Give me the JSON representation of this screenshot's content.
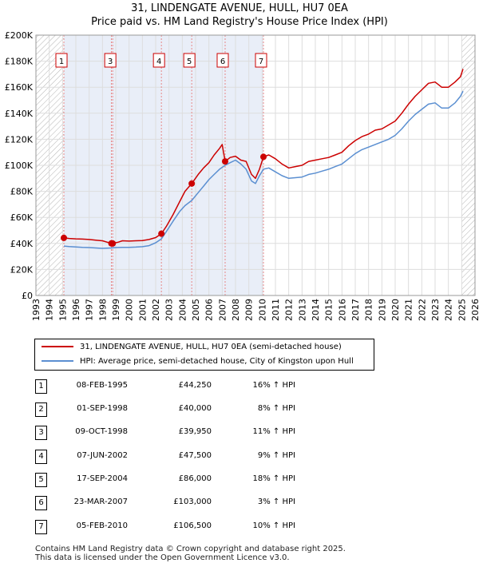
{
  "title": {
    "line1": "31, LINDENGATE AVENUE, HULL, HU7 0EA",
    "line2": "Price paid vs. HM Land Registry's House Price Index (HPI)"
  },
  "colors": {
    "property": "#cc0000",
    "hpi": "#5b8fd1",
    "shade": "#e9eef8",
    "hatch": "#b3b3b3",
    "grid": "#ffffff",
    "vline": "#e88888"
  },
  "chart_data": {
    "type": "line",
    "xlim": [
      1993,
      2026
    ],
    "ylim": [
      0,
      200000
    ],
    "y_ticks": [
      0,
      20000,
      40000,
      60000,
      80000,
      100000,
      120000,
      140000,
      160000,
      180000,
      200000
    ],
    "y_tick_labels": [
      "£0",
      "£20K",
      "£40K",
      "£60K",
      "£80K",
      "£100K",
      "£120K",
      "£140K",
      "£160K",
      "£180K",
      "£200K"
    ],
    "x_ticks": [
      1993,
      1994,
      1995,
      1996,
      1997,
      1998,
      1999,
      2000,
      2001,
      2002,
      2003,
      2004,
      2005,
      2006,
      2007,
      2008,
      2009,
      2010,
      2011,
      2012,
      2013,
      2014,
      2015,
      2016,
      2017,
      2018,
      2019,
      2020,
      2021,
      2022,
      2023,
      2024,
      2025,
      2026
    ],
    "x_tick_labels": [
      "1993",
      "1994",
      "1995",
      "1996",
      "1997",
      "1998",
      "1999",
      "2000",
      "2001",
      "2002",
      "2003",
      "2004",
      "2005",
      "2006",
      "2007",
      "2008",
      "2009",
      "2010",
      "2011",
      "2012",
      "2013",
      "2014",
      "2015",
      "2016",
      "2017",
      "2018",
      "2019",
      "2020",
      "2021",
      "2022",
      "2023",
      "2024",
      "2025",
      "2026"
    ],
    "hatched_before": 1995.1,
    "hatched_after": 2025.0,
    "series": [
      {
        "name": "31, LINDENGATE AVENUE, HULL, HU7 0EA (semi-detached house)",
        "points": [
          [
            1995.1,
            44250
          ],
          [
            1995.5,
            43800
          ],
          [
            1996,
            43500
          ],
          [
            1996.5,
            43300
          ],
          [
            1997,
            43000
          ],
          [
            1997.5,
            42500
          ],
          [
            1998.0,
            42000
          ],
          [
            1998.67,
            40000
          ],
          [
            1998.77,
            39950
          ],
          [
            1999.2,
            41000
          ],
          [
            1999.5,
            42000
          ],
          [
            2000,
            41800
          ],
          [
            2000.5,
            42000
          ],
          [
            2001,
            42200
          ],
          [
            2001.5,
            43000
          ],
          [
            2002.0,
            44500
          ],
          [
            2002.43,
            47500
          ],
          [
            2002.8,
            53000
          ],
          [
            2003.3,
            62000
          ],
          [
            2003.8,
            72000
          ],
          [
            2004.2,
            80000
          ],
          [
            2004.71,
            86000
          ],
          [
            2005.2,
            93000
          ],
          [
            2005.6,
            98000
          ],
          [
            2006.0,
            102000
          ],
          [
            2006.4,
            108000
          ],
          [
            2006.8,
            113000
          ],
          [
            2007.0,
            116000
          ],
          [
            2007.22,
            103000
          ],
          [
            2007.6,
            106000
          ],
          [
            2008.0,
            107000
          ],
          [
            2008.4,
            104000
          ],
          [
            2008.8,
            103000
          ],
          [
            2009.2,
            93000
          ],
          [
            2009.5,
            90000
          ],
          [
            2009.8,
            97000
          ],
          [
            2010.1,
            106500
          ],
          [
            2010.5,
            108000
          ],
          [
            2011.0,
            105000
          ],
          [
            2011.5,
            101000
          ],
          [
            2012.0,
            98000
          ],
          [
            2012.5,
            99000
          ],
          [
            2013.0,
            100000
          ],
          [
            2013.5,
            103000
          ],
          [
            2014.0,
            104000
          ],
          [
            2014.5,
            105000
          ],
          [
            2015.0,
            106000
          ],
          [
            2015.5,
            108000
          ],
          [
            2016.0,
            110000
          ],
          [
            2016.5,
            115000
          ],
          [
            2017.0,
            119000
          ],
          [
            2017.5,
            122000
          ],
          [
            2018.0,
            124000
          ],
          [
            2018.5,
            127000
          ],
          [
            2019.0,
            128000
          ],
          [
            2019.5,
            131000
          ],
          [
            2020.0,
            134000
          ],
          [
            2020.5,
            140000
          ],
          [
            2021.0,
            147000
          ],
          [
            2021.5,
            153000
          ],
          [
            2022.0,
            158000
          ],
          [
            2022.5,
            163000
          ],
          [
            2023.0,
            164000
          ],
          [
            2023.5,
            160000
          ],
          [
            2024.0,
            160000
          ],
          [
            2024.5,
            164000
          ],
          [
            2024.9,
            168000
          ],
          [
            2025.1,
            174000
          ]
        ]
      },
      {
        "name": "HPI: Average price, semi-detached house, City of Kingston upon Hull",
        "points": [
          [
            1995.1,
            38000
          ],
          [
            1995.5,
            37600
          ],
          [
            1996,
            37300
          ],
          [
            1996.5,
            37000
          ],
          [
            1997,
            36800
          ],
          [
            1997.5,
            36500
          ],
          [
            1998.0,
            36200
          ],
          [
            1998.67,
            36500
          ],
          [
            1999.0,
            36800
          ],
          [
            1999.5,
            37000
          ],
          [
            2000,
            37000
          ],
          [
            2000.5,
            37200
          ],
          [
            2001,
            37500
          ],
          [
            2001.5,
            38300
          ],
          [
            2002.0,
            40500
          ],
          [
            2002.43,
            43500
          ],
          [
            2002.8,
            49000
          ],
          [
            2003.3,
            57000
          ],
          [
            2003.8,
            64500
          ],
          [
            2004.2,
            69000
          ],
          [
            2004.71,
            73000
          ],
          [
            2005.2,
            79000
          ],
          [
            2005.6,
            84000
          ],
          [
            2006.0,
            89000
          ],
          [
            2006.4,
            93000
          ],
          [
            2006.8,
            97000
          ],
          [
            2007.22,
            100000
          ],
          [
            2007.6,
            102000
          ],
          [
            2008.0,
            104000
          ],
          [
            2008.4,
            101000
          ],
          [
            2008.8,
            97000
          ],
          [
            2009.2,
            88000
          ],
          [
            2009.5,
            86000
          ],
          [
            2009.8,
            92000
          ],
          [
            2010.1,
            97000
          ],
          [
            2010.5,
            98000
          ],
          [
            2011.0,
            95000
          ],
          [
            2011.5,
            92000
          ],
          [
            2012.0,
            90000
          ],
          [
            2012.5,
            90500
          ],
          [
            2013.0,
            91000
          ],
          [
            2013.5,
            93000
          ],
          [
            2014.0,
            94000
          ],
          [
            2014.5,
            95500
          ],
          [
            2015.0,
            97000
          ],
          [
            2015.5,
            99000
          ],
          [
            2016.0,
            101000
          ],
          [
            2016.5,
            105000
          ],
          [
            2017.0,
            109000
          ],
          [
            2017.5,
            112000
          ],
          [
            2018.0,
            114000
          ],
          [
            2018.5,
            116000
          ],
          [
            2019.0,
            118000
          ],
          [
            2019.5,
            120000
          ],
          [
            2020.0,
            123000
          ],
          [
            2020.5,
            128000
          ],
          [
            2021.0,
            134000
          ],
          [
            2021.5,
            139000
          ],
          [
            2022.0,
            143000
          ],
          [
            2022.5,
            147000
          ],
          [
            2023.0,
            148000
          ],
          [
            2023.5,
            144000
          ],
          [
            2024.0,
            144000
          ],
          [
            2024.5,
            148000
          ],
          [
            2024.9,
            153000
          ],
          [
            2025.1,
            157000
          ]
        ]
      }
    ],
    "sales": [
      {
        "n": "1",
        "x": 1995.1,
        "y": 44250
      },
      {
        "n": "2",
        "x": 1998.67,
        "y": 40000
      },
      {
        "n": "3",
        "x": 1998.77,
        "y": 39950
      },
      {
        "n": "4",
        "x": 2002.43,
        "y": 47500
      },
      {
        "n": "5",
        "x": 2004.71,
        "y": 86000
      },
      {
        "n": "6",
        "x": 2007.22,
        "y": 103000
      },
      {
        "n": "7",
        "x": 2010.1,
        "y": 106500
      }
    ],
    "marker_labels": [
      {
        "n": "1",
        "x": 1995.1
      },
      {
        "n": "3",
        "x": 1998.77
      },
      {
        "n": "4",
        "x": 2002.43
      },
      {
        "n": "5",
        "x": 2004.71
      },
      {
        "n": "6",
        "x": 2007.22
      },
      {
        "n": "7",
        "x": 2010.1
      }
    ]
  },
  "legend": {
    "property": "31, LINDENGATE AVENUE, HULL, HU7 0EA (semi-detached house)",
    "hpi": "HPI: Average price, semi-detached house, City of Kingston upon Hull"
  },
  "transactions": [
    {
      "n": "1",
      "date": "08-FEB-1995",
      "price": "£44,250",
      "hpi": "16% ↑ HPI"
    },
    {
      "n": "2",
      "date": "01-SEP-1998",
      "price": "£40,000",
      "hpi": "8% ↑ HPI"
    },
    {
      "n": "3",
      "date": "09-OCT-1998",
      "price": "£39,950",
      "hpi": "11% ↑ HPI"
    },
    {
      "n": "4",
      "date": "07-JUN-2002",
      "price": "£47,500",
      "hpi": "9% ↑ HPI"
    },
    {
      "n": "5",
      "date": "17-SEP-2004",
      "price": "£86,000",
      "hpi": "18% ↑ HPI"
    },
    {
      "n": "6",
      "date": "23-MAR-2007",
      "price": "£103,000",
      "hpi": "3% ↑ HPI"
    },
    {
      "n": "7",
      "date": "05-FEB-2010",
      "price": "£106,500",
      "hpi": "10% ↑ HPI"
    }
  ],
  "footer": {
    "line1": "Contains HM Land Registry data © Crown copyright and database right 2025.",
    "line2": "This data is licensed under the Open Government Licence v3.0."
  }
}
